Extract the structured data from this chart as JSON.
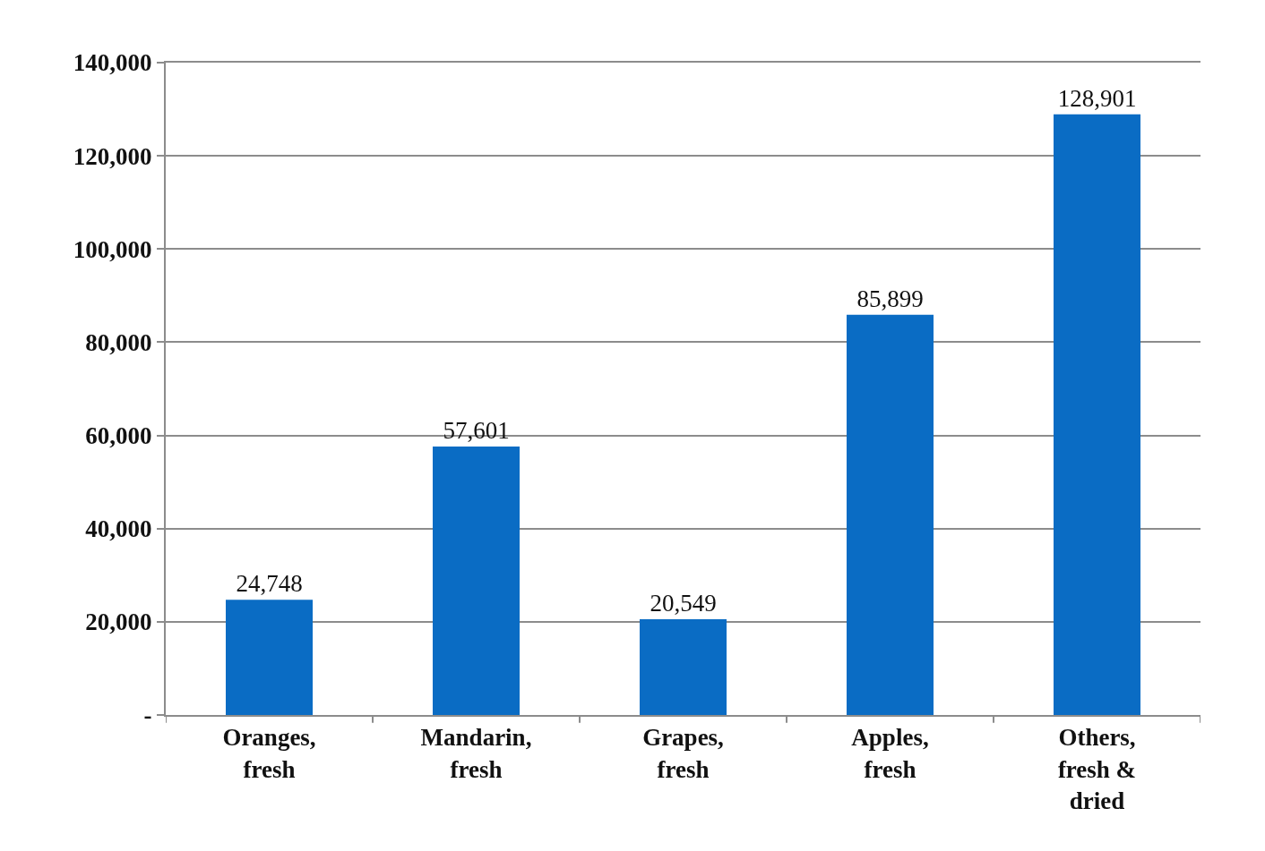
{
  "chart_data": {
    "type": "bar",
    "categories": [
      "Oranges, fresh",
      "Mandarin, fresh",
      "Grapes, fresh",
      "Apples, fresh",
      "Others, fresh & dried"
    ],
    "values": [
      24748,
      57601,
      20549,
      85899,
      128901
    ],
    "value_labels": [
      "24,748",
      "57,601",
      "20,549",
      "85,899",
      "128,901"
    ],
    "color": "#0a6cc4",
    "ylim": [
      0,
      140000
    ],
    "yticks": [
      {
        "value": 0,
        "label": "-"
      },
      {
        "value": 20000,
        "label": "20,000"
      },
      {
        "value": 40000,
        "label": "40,000"
      },
      {
        "value": 60000,
        "label": "60,000"
      },
      {
        "value": 80000,
        "label": "80,000"
      },
      {
        "value": 100000,
        "label": "100,000"
      },
      {
        "value": 120000,
        "label": "120,000"
      },
      {
        "value": 140000,
        "label": "140,000"
      }
    ],
    "grid": "y"
  }
}
